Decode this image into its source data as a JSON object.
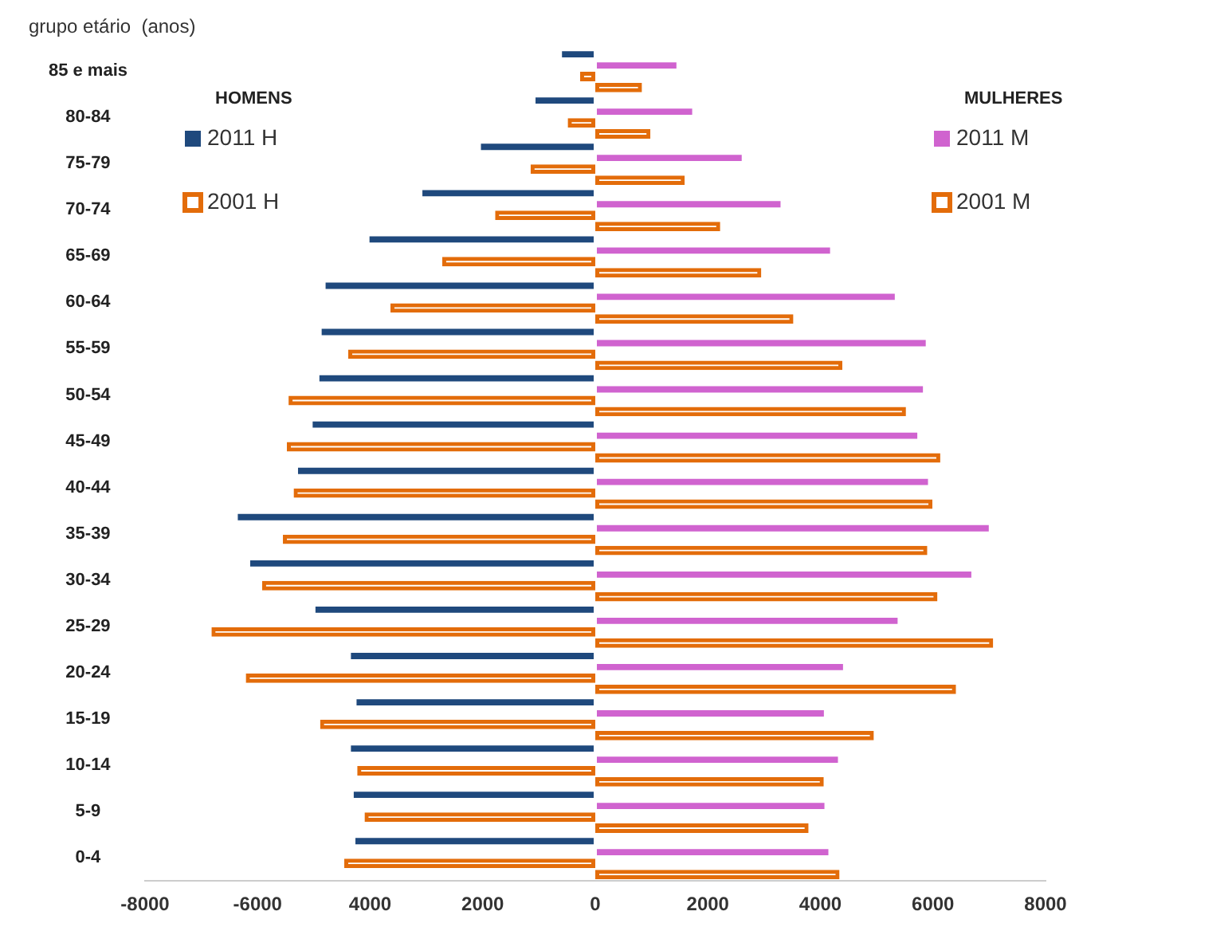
{
  "chart_data": {
    "type": "bar",
    "orientation": "horizontal",
    "ylabel": "grupo etário  (anos)",
    "categories": [
      "85 e mais",
      "80-84",
      "75-79",
      "70-74",
      "65-69",
      "60-64",
      "55-59",
      "50-54",
      "45-49",
      "40-44",
      "35-39",
      "30-34",
      "25-29",
      "20-24",
      "15-19",
      "10-14",
      "5-9",
      "0-4"
    ],
    "series": [
      {
        "name": "2011 H",
        "color": "#1f497d",
        "values": [
          -620,
          -1090,
          -2060,
          -3100,
          -4040,
          -4820,
          -4890,
          -4930,
          -5050,
          -5310,
          -6380,
          -6160,
          -5000,
          -4370,
          -4270,
          -4370,
          -4320,
          -4290
        ]
      },
      {
        "name": "2011 M",
        "color": "#d063cf",
        "values": [
          1470,
          1750,
          2630,
          3320,
          4200,
          5350,
          5900,
          5850,
          5750,
          5940,
          7020,
          6710,
          5400,
          4430,
          4090,
          4340,
          4100,
          4170
        ]
      },
      {
        "name": "2001 H",
        "color": "#e36c0a",
        "values": [
          -270,
          -490,
          -1150,
          -1780,
          -2720,
          -3640,
          -4390,
          -5450,
          -5480,
          -5360,
          -5550,
          -5920,
          -6820,
          -6210,
          -4890,
          -4230,
          -4100,
          -4460
        ]
      },
      {
        "name": "2001 M",
        "color": "#e36c0a",
        "values": [
          830,
          980,
          1590,
          2220,
          2950,
          3520,
          4390,
          5520,
          6130,
          5990,
          5900,
          6080,
          7070,
          6410,
          4950,
          4060,
          3790,
          4340
        ]
      }
    ],
    "xlim": [
      -8000,
      8000
    ],
    "xticks": [
      -8000,
      -6000,
      {
        "value": -4000,
        "label": "4000"
      },
      {
        "value": -2000,
        "label": "2000"
      },
      0,
      2000,
      4000,
      6000,
      8000
    ],
    "legend": "top",
    "annotations": [
      "HOMENS",
      "MULHERES"
    ]
  }
}
